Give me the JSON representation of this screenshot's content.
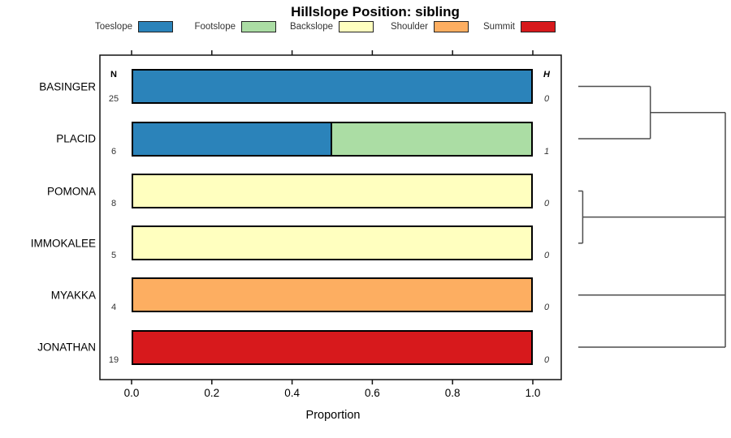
{
  "chart_data": {
    "type": "bar",
    "subtype": "horizontal-stacked-proportion-with-dendrogram",
    "title": "Hillslope Position: sibling",
    "xlabel": "Proportion",
    "xlim": [
      0.0,
      1.0
    ],
    "x_ticks": [
      "0.0",
      "0.2",
      "0.4",
      "0.6",
      "0.8",
      "1.0"
    ],
    "grid": false,
    "legend_position": "top",
    "n_header": "N",
    "h_header": "H",
    "legend": [
      {
        "label": "Toeslope",
        "color": "#2B83BA"
      },
      {
        "label": "Footslope",
        "color": "#ABDDA4"
      },
      {
        "label": "Backslope",
        "color": "#FFFFBF"
      },
      {
        "label": "Shoulder",
        "color": "#FDAE61"
      },
      {
        "label": "Summit",
        "color": "#D7191C"
      }
    ],
    "rows": [
      {
        "name": "BASINGER",
        "n": 25,
        "h": 0,
        "segments": [
          {
            "position": "Toeslope",
            "proportion": 1.0
          }
        ]
      },
      {
        "name": "PLACID",
        "n": 6,
        "h": 1,
        "segments": [
          {
            "position": "Toeslope",
            "proportion": 0.5
          },
          {
            "position": "Footslope",
            "proportion": 0.5
          }
        ]
      },
      {
        "name": "POMONA",
        "n": 8,
        "h": 0,
        "segments": [
          {
            "position": "Backslope",
            "proportion": 1.0
          }
        ]
      },
      {
        "name": "IMMOKALEE",
        "n": 5,
        "h": 0,
        "segments": [
          {
            "position": "Backslope",
            "proportion": 1.0
          }
        ]
      },
      {
        "name": "MYAKKA",
        "n": 4,
        "h": 0,
        "segments": [
          {
            "position": "Shoulder",
            "proportion": 1.0
          }
        ]
      },
      {
        "name": "JONATHAN",
        "n": 19,
        "h": 0,
        "segments": [
          {
            "position": "Summit",
            "proportion": 1.0
          }
        ]
      }
    ],
    "dendrogram": {
      "joins": [
        {
          "members": [
            "BASINGER",
            "PLACID"
          ],
          "height": 0.49
        },
        {
          "members": [
            "POMONA",
            "IMMOKALEE"
          ],
          "height": 0.03
        }
      ],
      "root_height": 1.0,
      "line_color": "#4d4d4d"
    }
  }
}
